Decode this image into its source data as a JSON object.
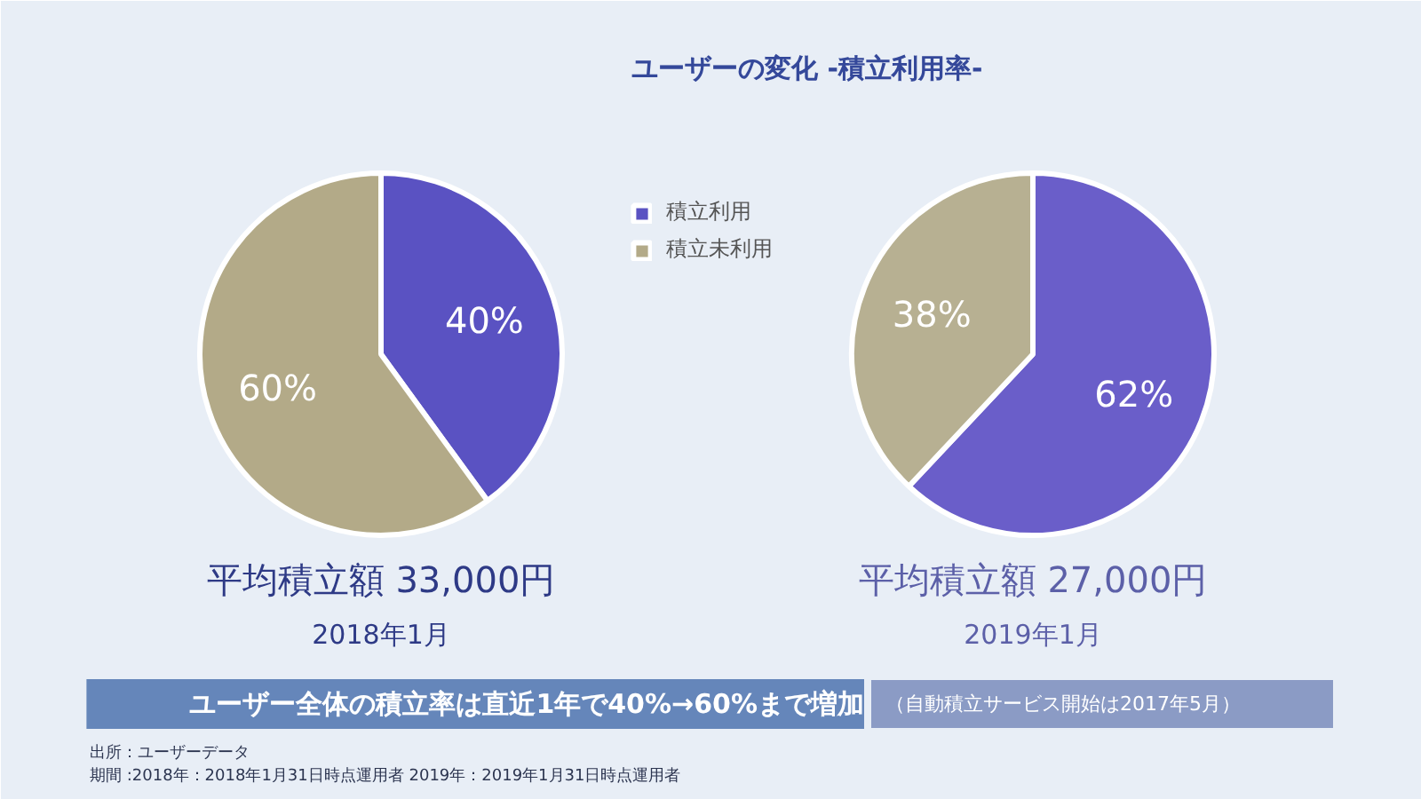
{
  "chart_data": [
    {
      "type": "pie",
      "title": "ユーザーの変化 -積立利用率-",
      "categories": [
        "積立利用",
        "積立未利用"
      ],
      "values": [
        40,
        60
      ],
      "colors": [
        "#5a52c2",
        "#b3aa88"
      ],
      "value_labels": [
        "40%",
        "60%"
      ],
      "legend": "right",
      "annotations": [
        "平均積立額 33,000円",
        "2018年1月",
        "ユーザー全体の積立率は直近1年で40%→60%まで増加",
        "（自動積立サービス開始は2017年5月）",
        "出所：ユーザーデータ",
        "期間 :2018年：2018年1月31日時点運用者  2019年：2019年1月31日時点運用者"
      ]
    },
    {
      "type": "pie",
      "categories": [
        null,
        null
      ],
      "values": [
        62,
        38
      ],
      "colors": [
        "#6a5ec9",
        "#b7b092"
      ],
      "value_labels": [
        "62%",
        "38%"
      ],
      "annotations": [
        "平均積立額 27,000円",
        "2019年1月"
      ]
    }
  ]
}
